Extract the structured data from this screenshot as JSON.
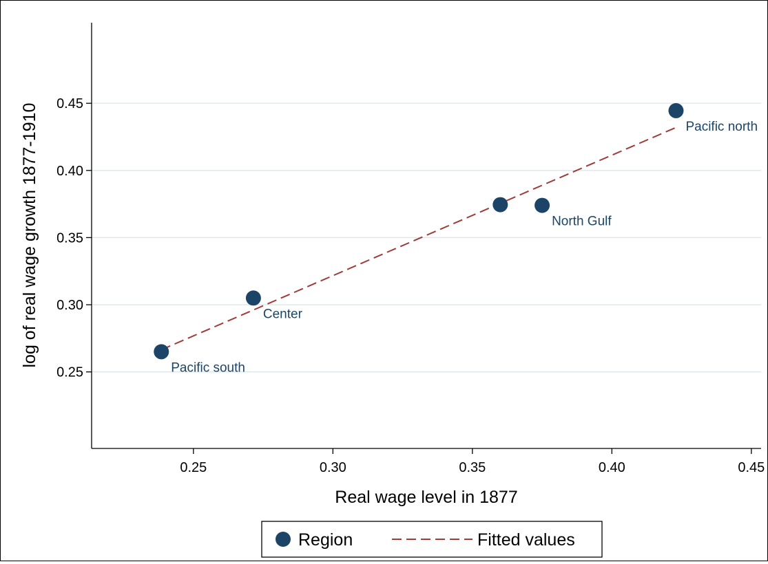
{
  "chart_data": {
    "type": "scatter",
    "title": "",
    "xlabel": "Real wage level in 1877",
    "ylabel": "log of real wage growth 1877-1910",
    "xlim": [
      0.2135,
      0.4535
    ],
    "ylim": [
      0.193,
      0.51
    ],
    "xticks": [
      {
        "value": 0.25,
        "label": "0.25"
      },
      {
        "value": 0.3,
        "label": "0.30"
      },
      {
        "value": 0.35,
        "label": "0.35"
      },
      {
        "value": 0.4,
        "label": "0.40"
      },
      {
        "value": 0.45,
        "label": "0.45"
      }
    ],
    "yticks": [
      {
        "value": 0.25,
        "label": "0.25"
      },
      {
        "value": 0.3,
        "label": "0.30"
      },
      {
        "value": 0.35,
        "label": "0.35"
      },
      {
        "value": 0.4,
        "label": "0.40"
      },
      {
        "value": 0.45,
        "label": "0.45"
      }
    ],
    "grid": "horizontal",
    "points": [
      {
        "x": 0.2385,
        "y": 0.265,
        "label": "Pacific south"
      },
      {
        "x": 0.2715,
        "y": 0.305,
        "label": "Center"
      },
      {
        "x": 0.36,
        "y": 0.3745,
        "label": ""
      },
      {
        "x": 0.375,
        "y": 0.374,
        "label": "North Gulf"
      },
      {
        "x": 0.423,
        "y": 0.4445,
        "label": "Pacific north"
      }
    ],
    "fit_line": {
      "x": [
        0.2385,
        0.423
      ],
      "y": [
        0.2665,
        0.432
      ]
    },
    "legend": {
      "position": "bottom",
      "entries": [
        {
          "name": "Region",
          "marker": "circle"
        },
        {
          "name": "Fitted values",
          "marker": "dashed-line"
        }
      ]
    },
    "colors": {
      "point": "#1c4467",
      "fit": "#9e3a38",
      "grid": "#dbe6ea",
      "axis": "#000000"
    }
  }
}
